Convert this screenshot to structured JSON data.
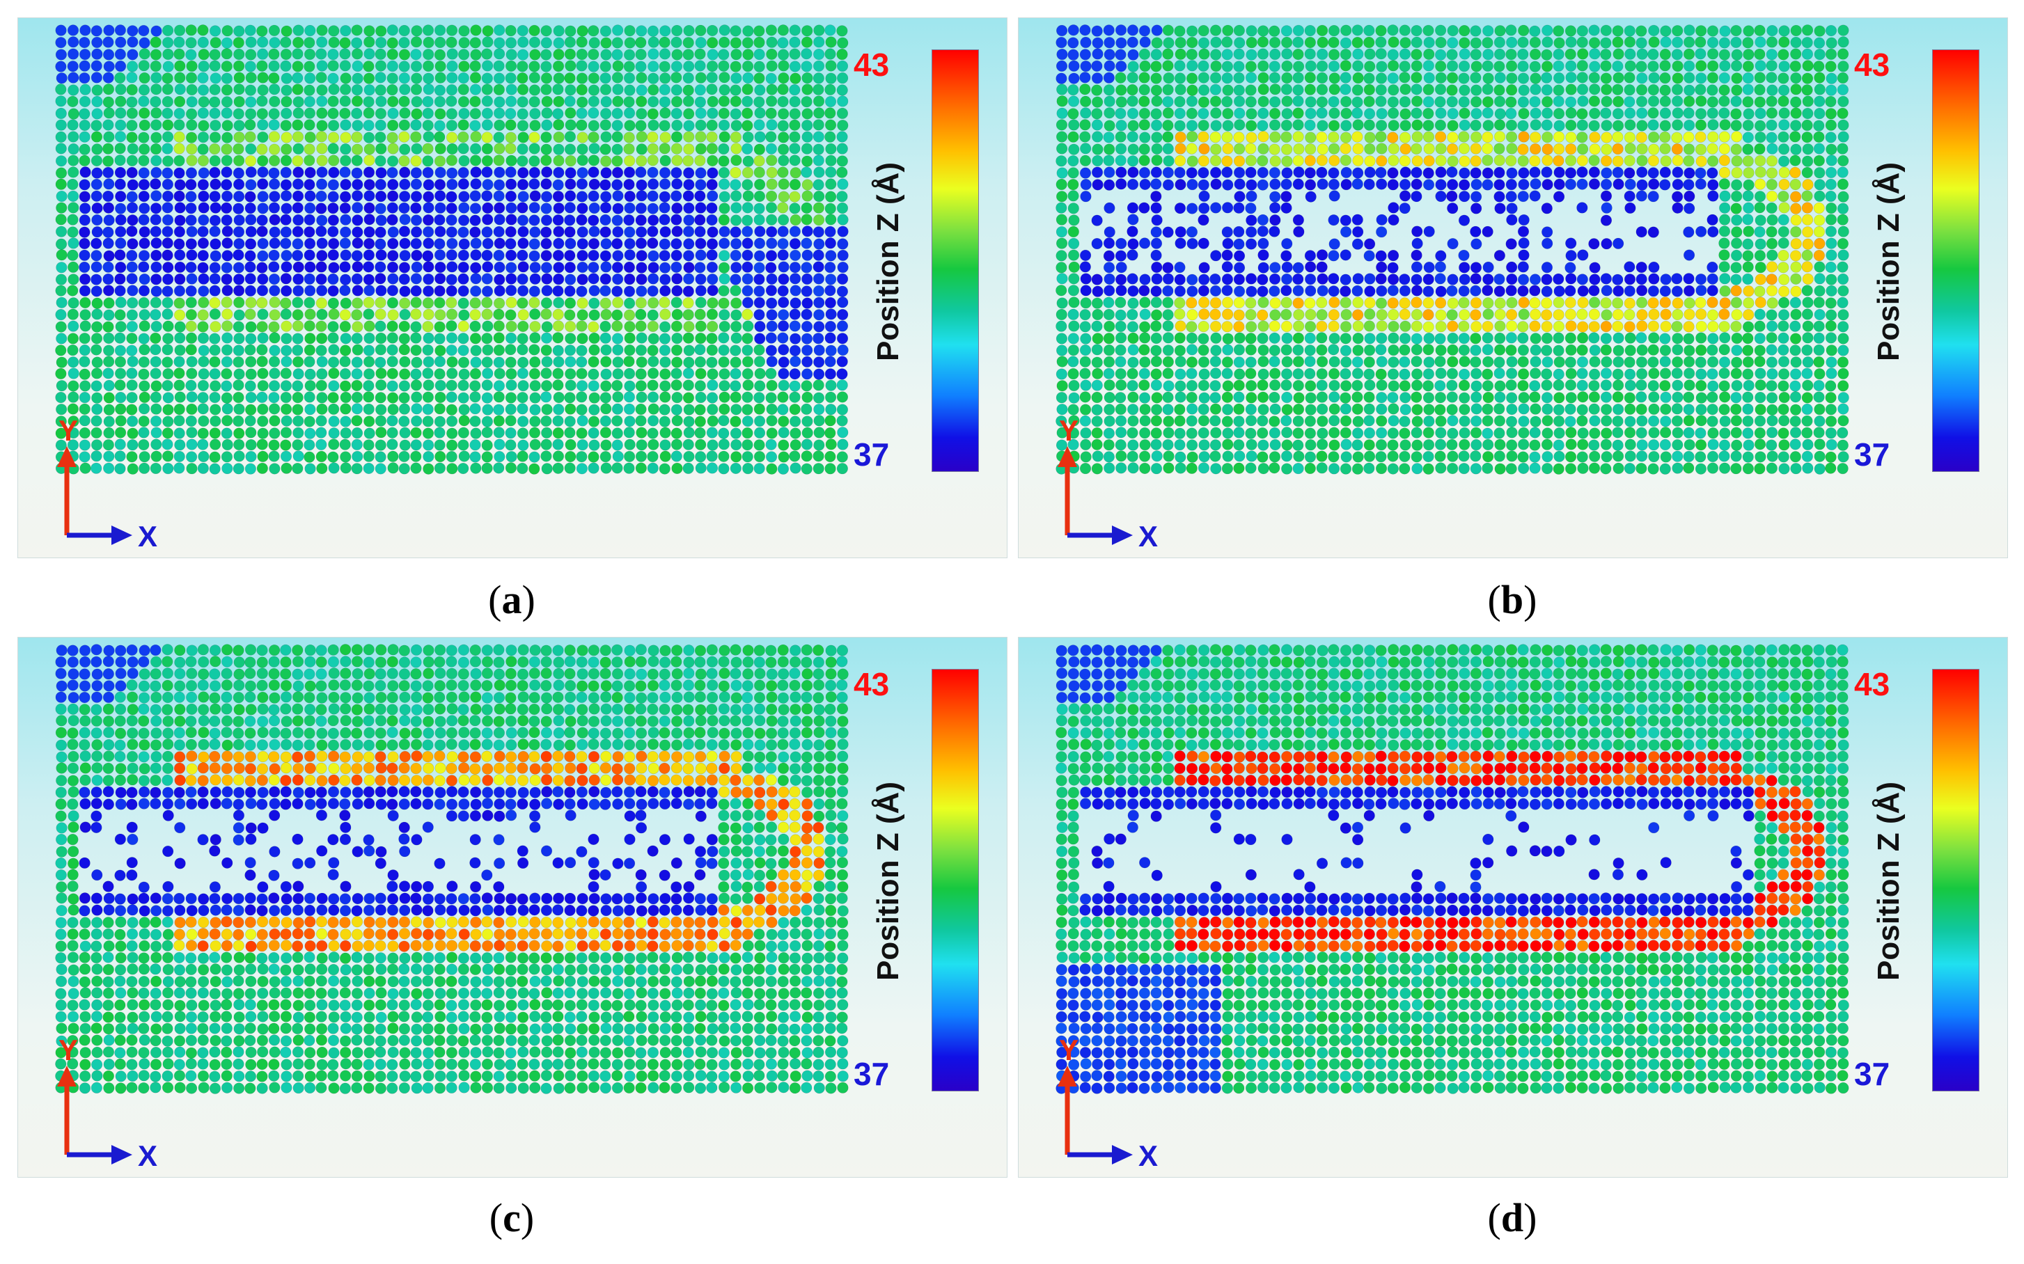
{
  "panels": [
    {
      "id": "a",
      "caption_letter": "a",
      "colorbar_max": "43",
      "colorbar_min": "37",
      "colorbar_label": "Position Z (Å)",
      "axis_y": "Y",
      "axis_x": "X",
      "ridge_level": 0.15
    },
    {
      "id": "b",
      "caption_letter": "b",
      "colorbar_max": "43",
      "colorbar_min": "37",
      "colorbar_label": "Position Z (Å)",
      "axis_y": "Y",
      "axis_x": "X",
      "ridge_level": 0.45
    },
    {
      "id": "c",
      "caption_letter": "c",
      "colorbar_max": "43",
      "colorbar_min": "37",
      "colorbar_label": "Position Z (Å)",
      "axis_y": "Y",
      "axis_x": "X",
      "ridge_level": 0.7
    },
    {
      "id": "d",
      "caption_letter": "d",
      "colorbar_max": "43",
      "colorbar_min": "37",
      "colorbar_label": "Position Z (Å)",
      "axis_y": "Y",
      "axis_x": "X",
      "ridge_level": 1.0
    }
  ],
  "colors": {
    "z_low": "#1a18d8",
    "z_mid": "#16c840",
    "z_high": "#ff1010",
    "axis_arrow_y": "#e83010",
    "axis_arrow_x": "#1a1ad0"
  }
}
